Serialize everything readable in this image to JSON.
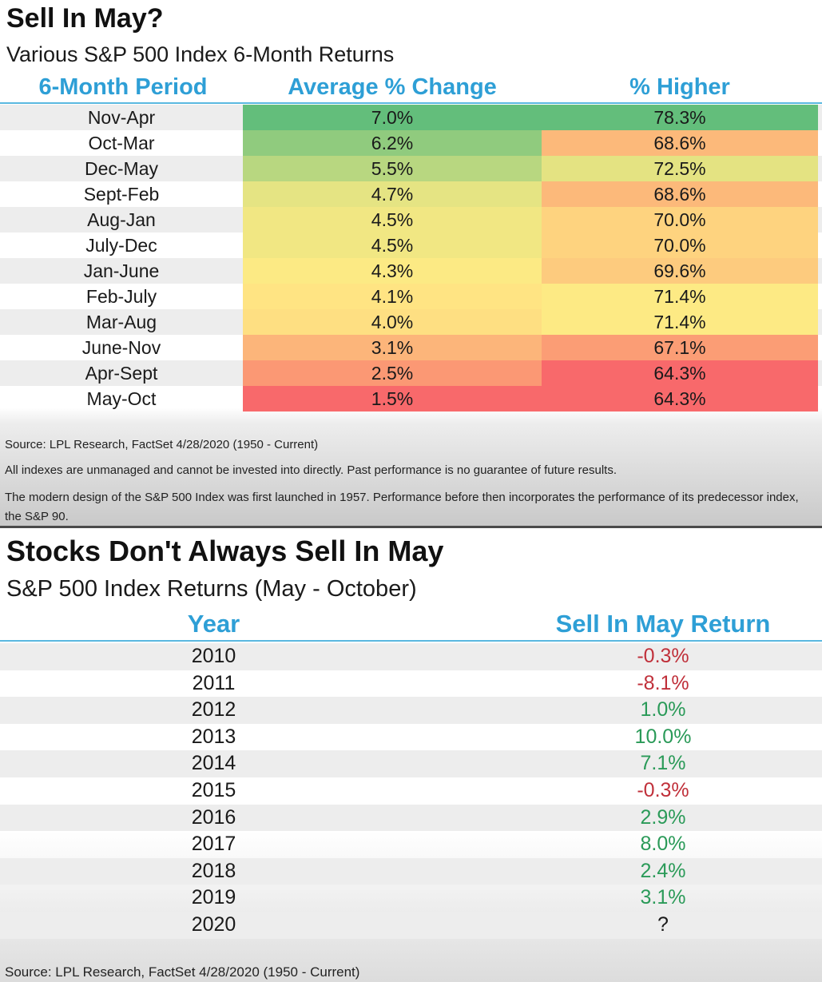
{
  "chart_data": [
    {
      "type": "table",
      "title": "Sell In May?",
      "subtitle": "Various S&P 500 Index 6-Month Returns",
      "columns": [
        "6-Month Period",
        "Average % Change",
        "% Higher"
      ],
      "rows": [
        {
          "period": "Nov-Apr",
          "avg": 7.0,
          "avg_label": "7.0%",
          "higher": 78.3,
          "higher_label": "78.3%"
        },
        {
          "period": "Oct-Mar",
          "avg": 6.2,
          "avg_label": "6.2%",
          "higher": 68.6,
          "higher_label": "68.6%"
        },
        {
          "period": "Dec-May",
          "avg": 5.5,
          "avg_label": "5.5%",
          "higher": 72.5,
          "higher_label": "72.5%"
        },
        {
          "period": "Sept-Feb",
          "avg": 4.7,
          "avg_label": "4.7%",
          "higher": 68.6,
          "higher_label": "68.6%"
        },
        {
          "period": "Aug-Jan",
          "avg": 4.5,
          "avg_label": "4.5%",
          "higher": 70.0,
          "higher_label": "70.0%"
        },
        {
          "period": "July-Dec",
          "avg": 4.5,
          "avg_label": "4.5%",
          "higher": 70.0,
          "higher_label": "70.0%"
        },
        {
          "period": "Jan-June",
          "avg": 4.3,
          "avg_label": "4.3%",
          "higher": 69.6,
          "higher_label": "69.6%"
        },
        {
          "period": "Feb-July",
          "avg": 4.1,
          "avg_label": "4.1%",
          "higher": 71.4,
          "higher_label": "71.4%"
        },
        {
          "period": "Mar-Aug",
          "avg": 4.0,
          "avg_label": "4.0%",
          "higher": 71.4,
          "higher_label": "71.4%"
        },
        {
          "period": "June-Nov",
          "avg": 3.1,
          "avg_label": "3.1%",
          "higher": 67.1,
          "higher_label": "67.1%"
        },
        {
          "period": "Apr-Sept",
          "avg": 2.5,
          "avg_label": "2.5%",
          "higher": 64.3,
          "higher_label": "64.3%"
        },
        {
          "period": "May-Oct",
          "avg": 1.5,
          "avg_label": "1.5%",
          "higher": 64.3,
          "higher_label": "64.3%"
        }
      ],
      "notes": [
        "Source: LPL Research, FactSet 4/28/2020 (1950 - Current)",
        "All indexes are unmanaged and cannot be invested into directly. Past performance is no guarantee of future results.",
        "The modern design of the S&P 500 Index was first launched in 1957. Performance before then incorporates the performance of its predecessor index, the S&P 90."
      ]
    },
    {
      "type": "table",
      "title": "Stocks Don't Always Sell In May",
      "subtitle": "S&P 500 Index Returns (May - October)",
      "columns": [
        "Year",
        "Sell In May Return"
      ],
      "rows": [
        {
          "year": "2010",
          "value": -0.3,
          "label": "-0.3%"
        },
        {
          "year": "2011",
          "value": -8.1,
          "label": "-8.1%"
        },
        {
          "year": "2012",
          "value": 1.0,
          "label": "1.0%"
        },
        {
          "year": "2013",
          "value": 10.0,
          "label": "10.0%"
        },
        {
          "year": "2014",
          "value": 7.1,
          "label": "7.1%"
        },
        {
          "year": "2015",
          "value": -0.3,
          "label": "-0.3%"
        },
        {
          "year": "2016",
          "value": 2.9,
          "label": "2.9%"
        },
        {
          "year": "2017",
          "value": 8.0,
          "label": "8.0%"
        },
        {
          "year": "2018",
          "value": 2.4,
          "label": "2.4%"
        },
        {
          "year": "2019",
          "value": 3.1,
          "label": "3.1%"
        },
        {
          "year": "2020",
          "value": null,
          "label": "?"
        }
      ],
      "source": "Source: LPL Research, FactSet 4/28/2020 (1950 - Current)"
    }
  ],
  "colors": {
    "header_blue": "#2e9fd6",
    "rule_blue": "#5ab8e0",
    "negative": "#c0303a",
    "positive": "#2a9a58",
    "scale_high": "#63be7b",
    "scale_mid": "#ffeb84",
    "scale_low": "#f8696b"
  }
}
